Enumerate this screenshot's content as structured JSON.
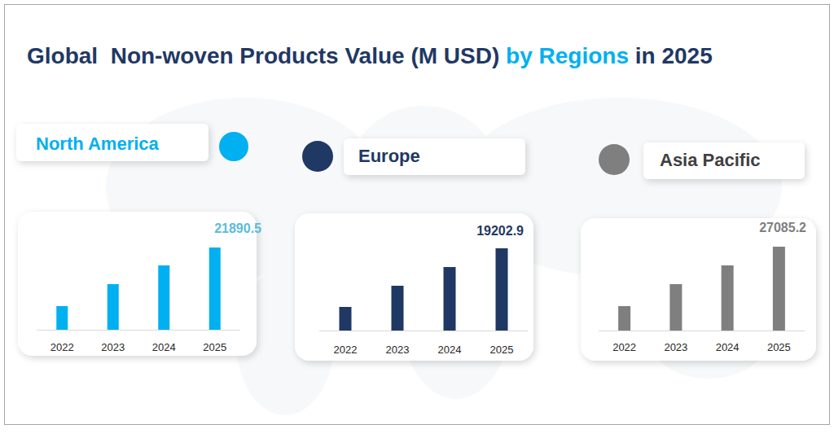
{
  "title": [
    "Global  Non-woven Products Value (M USD) ",
    "by Regions",
    " in 2025"
  ],
  "chart_data": [
    {
      "type": "bar",
      "title": "North America",
      "categories": [
        "2022",
        "2023",
        "2024",
        "2025"
      ],
      "values": [
        6285,
        12137,
        17123,
        21890.5
      ],
      "value_labels": [
        null,
        null,
        null,
        "21890.5"
      ],
      "color": "#00b0f0",
      "ylim": [
        0,
        21890.5
      ],
      "tick_labels": "x",
      "grid": false
    },
    {
      "type": "bar",
      "title": "Europe",
      "categories": [
        "2022",
        "2023",
        "2024",
        "2025"
      ],
      "values": [
        5514,
        10457,
        14830,
        19202.9
      ],
      "value_labels": [
        null,
        null,
        null,
        "19202.9"
      ],
      "color": "#1f3864",
      "ylim": [
        0,
        19202.9
      ],
      "tick_labels": "x",
      "grid": false
    },
    {
      "type": "bar",
      "title": "Asia Pacific",
      "categories": [
        "2022",
        "2023",
        "2024",
        "2025"
      ],
      "values": [
        7889,
        14989,
        21037,
        27085.2
      ],
      "value_labels": [
        null,
        null,
        null,
        "27085.2"
      ],
      "color": "#7f7f7f",
      "ylim": [
        0,
        27085.2
      ],
      "tick_labels": "x",
      "grid": false
    }
  ]
}
